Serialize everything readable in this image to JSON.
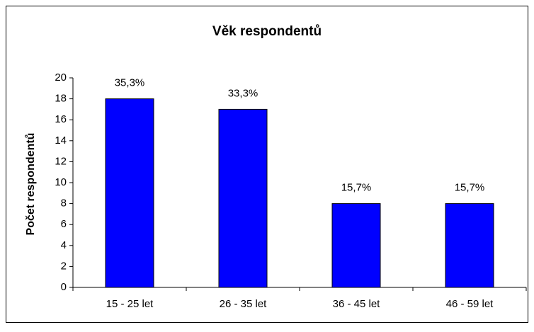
{
  "chart_data": {
    "type": "bar",
    "title": "Věk respondentů",
    "ylabel": "Počet respondentů",
    "categories": [
      "15 - 25 let",
      "26 - 35 let",
      "36 - 45 let",
      "46 - 59 let"
    ],
    "values": [
      18,
      17,
      8,
      8
    ],
    "color": "#0000ff",
    "percent_values": [
      35.3,
      33.3,
      15.7,
      15.7
    ],
    "percent_labels": [
      "35,3%",
      "33,3%",
      "15,7%",
      "15,7%"
    ],
    "ylim": [
      0,
      20
    ],
    "yticks": [
      0,
      2,
      4,
      6,
      8,
      10,
      12,
      14,
      16,
      18,
      20
    ],
    "grid": false
  }
}
